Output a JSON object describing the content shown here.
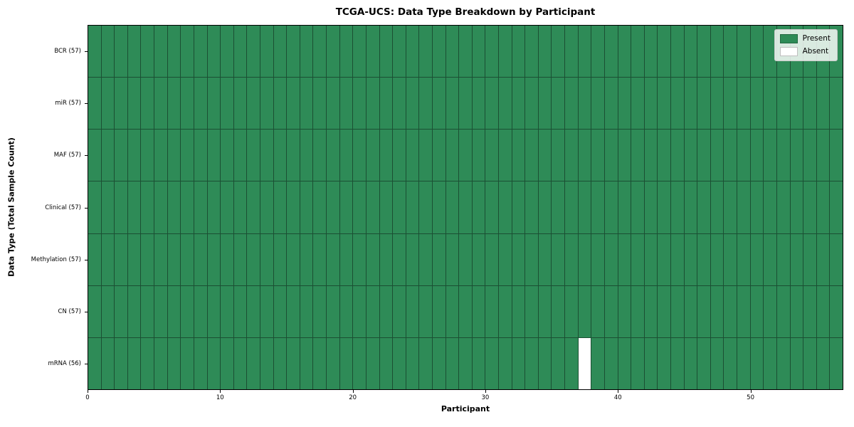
{
  "chart_data": {
    "type": "heatmap",
    "title": "TCGA-UCS: Data Type Breakdown by Participant",
    "xlabel": "Participant",
    "ylabel": "Data Type (Total Sample Count)",
    "n_participants": 57,
    "x_range": [
      0,
      57
    ],
    "x_ticks": [
      0,
      10,
      20,
      30,
      40,
      50
    ],
    "grid": "cell-edges",
    "rows": [
      {
        "label": "BCR (57)",
        "data_type": "BCR",
        "present_count": 57,
        "absent_participants": []
      },
      {
        "label": "miR (57)",
        "data_type": "miR",
        "present_count": 57,
        "absent_participants": []
      },
      {
        "label": "MAF (57)",
        "data_type": "MAF",
        "present_count": 57,
        "absent_participants": []
      },
      {
        "label": "Clinical (57)",
        "data_type": "Clinical",
        "present_count": 57,
        "absent_participants": []
      },
      {
        "label": "Methylation (57)",
        "data_type": "Methylation",
        "present_count": 57,
        "absent_participants": []
      },
      {
        "label": "CN (57)",
        "data_type": "CN",
        "present_count": 57,
        "absent_participants": []
      },
      {
        "label": "mRNA (56)",
        "data_type": "mRNA",
        "present_count": 56,
        "absent_participants": [
          37
        ]
      }
    ],
    "legend": {
      "position": "upper right",
      "entries": [
        {
          "label": "Present",
          "color": "#2e8b57"
        },
        {
          "label": "Absent",
          "color": "#ffffff"
        }
      ]
    },
    "colors": {
      "present": "#2e8b57",
      "absent": "#ffffff",
      "cell_edge": "#1b4f33",
      "spine": "#000000"
    }
  }
}
